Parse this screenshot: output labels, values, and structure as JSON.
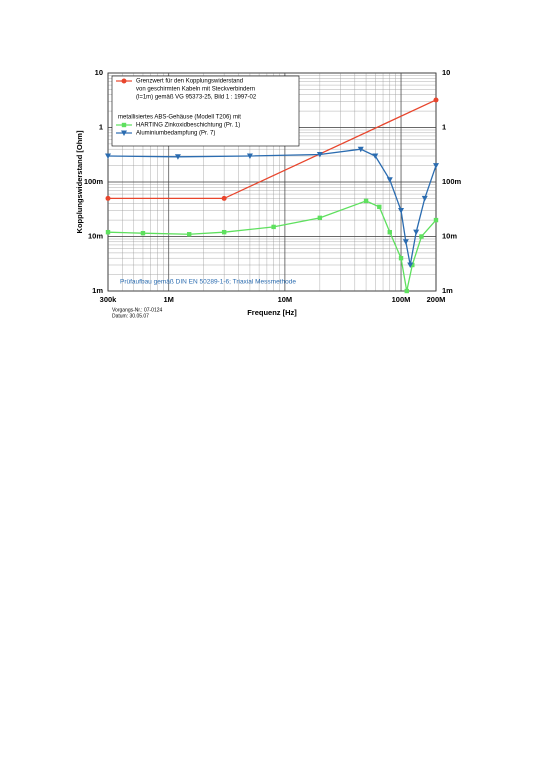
{
  "chart_data": {
    "type": "line",
    "x_label": "Frequenz [Hz]",
    "y_label": "Kopplungswiderstand [Ohm]",
    "log_x": true,
    "log_y": true,
    "grid": true,
    "xlim": [
      300000,
      200000000
    ],
    "ylim": [
      0.001,
      10
    ],
    "xticks": [
      {
        "value": 300000,
        "label": "300k"
      },
      {
        "value": 1000000,
        "label": "1M"
      },
      {
        "value": 10000000,
        "label": "10M"
      },
      {
        "value": 100000000,
        "label": "100M"
      },
      {
        "value": 200000000,
        "label": "200M"
      }
    ],
    "yticks": [
      {
        "value": 0.001,
        "label": "1m"
      },
      {
        "value": 0.01,
        "label": "10m"
      },
      {
        "value": 0.1,
        "label": "100m"
      },
      1,
      10
    ],
    "legend_heading": "metallisiertes ABS-Gehäuse (Modell T206) mit",
    "series": [
      {
        "name": [
          "Grenzwert für den Kopplungswiderstand",
          "von geschirmten Kabeln mit Steckverbindern",
          "(l=1m) gemäß VG 95373-25, Bild 1 : 1997-02"
        ],
        "color": "#e8452c",
        "marker": "circle",
        "x": [
          300000,
          3000000,
          200000000
        ],
        "values": [
          0.05,
          0.05,
          3.2
        ]
      },
      {
        "name": "HARTING Zinkoxidbeschichtung (Pr. 1)",
        "color": "#5ee05e",
        "marker": "square",
        "x": [
          300000,
          600000,
          1500000,
          3000000,
          8000000,
          20000000,
          50000000,
          65000000,
          80000000,
          100000000,
          112000000,
          125000000,
          150000000,
          200000000
        ],
        "values": [
          0.012,
          0.0115,
          0.011,
          0.012,
          0.015,
          0.022,
          0.045,
          0.035,
          0.012,
          0.004,
          0.001,
          0.003,
          0.01,
          0.02
        ]
      },
      {
        "name": "Aluminiumbedampfung (Pr. 7)",
        "color": "#2b6cb0",
        "marker": "triangle",
        "x": [
          300000,
          1200000,
          5000000,
          20000000,
          45000000,
          60000000,
          80000000,
          100000000,
          110000000,
          120000000,
          135000000,
          160000000,
          200000000
        ],
        "values": [
          0.3,
          0.29,
          0.3,
          0.32,
          0.4,
          0.3,
          0.11,
          0.03,
          0.008,
          0.003,
          0.012,
          0.05,
          0.2
        ]
      }
    ],
    "annotation": "Prüfaufbau gemäß DIN EN 50289-1-6; Triaxial Messmethode",
    "footnotes": [
      "Vorgangs-Nr.: 07-0124",
      "Datum: 30.05.07"
    ]
  }
}
